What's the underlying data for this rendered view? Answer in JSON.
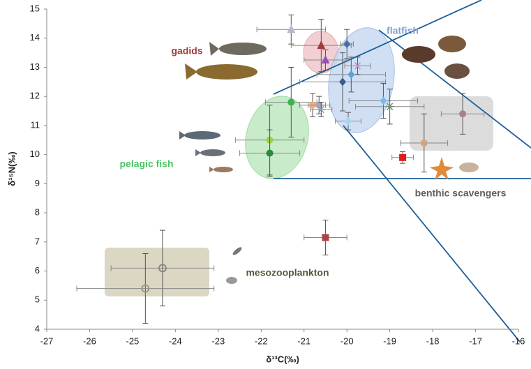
{
  "chart_data": {
    "type": "scatter",
    "x_label": "δ¹³C(‰)",
    "y_label": "δ¹⁵N(‰)",
    "xlim": [
      -27,
      -16
    ],
    "ylim": [
      4,
      15
    ],
    "xticks": [
      -27,
      -26,
      -25,
      -24,
      -23,
      -22,
      -21,
      -20,
      -19,
      -18,
      -17,
      -16
    ],
    "yticks": [
      4,
      5,
      6,
      7,
      8,
      9,
      10,
      11,
      12,
      13,
      14,
      15
    ],
    "annotations": [
      {
        "text": "gadids",
        "color": "#a33b3b"
      },
      {
        "text": "flatfish",
        "color": "#7c9fd6"
      },
      {
        "text": "pelagic fish",
        "color": "#4cc466"
      },
      {
        "text": "benthic scavengers",
        "color": "#5e5e5e"
      },
      {
        "text": "mesozooplankton",
        "color": "#55553a"
      }
    ],
    "points": [
      {
        "x": -21.3,
        "y": 14.3,
        "xerr": 0.8,
        "yerr": 0.5,
        "marker": "triangle",
        "color": "#b8b8cc"
      },
      {
        "x": -20.6,
        "y": 13.75,
        "xerr": 0.7,
        "yerr": 0.9,
        "marker": "triangle",
        "color": "#a33b3b"
      },
      {
        "x": -20.5,
        "y": 13.25,
        "xerr": 0.5,
        "yerr": 0.35,
        "marker": "triangle",
        "color": "#9b4fb5"
      },
      {
        "x": -20.0,
        "y": 13.8,
        "xerr": 0.15,
        "yerr": 0.5,
        "marker": "diamond",
        "color": "#4a6fa5"
      },
      {
        "x": -20.1,
        "y": 12.5,
        "xerr": 1.0,
        "yerr": 1.0,
        "marker": "diamond",
        "color": "#3d5d8f"
      },
      {
        "x": -19.9,
        "y": 12.75,
        "xerr": 0.8,
        "yerr": 0.6,
        "marker": "diamond",
        "color": "#5aa0dc"
      },
      {
        "x": -19.75,
        "y": 13.05,
        "xerr": 0.3,
        "yerr": 0.3,
        "marker": "asterisk",
        "color": "#b99ac8"
      },
      {
        "x": -19.15,
        "y": 11.85,
        "xerr": 0.8,
        "yerr": 0.6,
        "marker": "diamond",
        "color": "#7fb8e6"
      },
      {
        "x": -19.0,
        "y": 11.65,
        "xerr": 0.8,
        "yerr": 0.6,
        "marker": "asterisk",
        "color": "#6e8a6e"
      },
      {
        "x": -19.97,
        "y": 11.15,
        "xerr": 0.3,
        "yerr": 0.3,
        "marker": "diamond",
        "color": "#a8d4f2"
      },
      {
        "x": -17.3,
        "y": 11.4,
        "xerr": 0.5,
        "yerr": 0.7,
        "marker": "circle",
        "color": "#a8808c"
      },
      {
        "x": -18.2,
        "y": 10.4,
        "xerr": 0.55,
        "yerr": 1.0,
        "marker": "circle",
        "color": "#d6a37a"
      },
      {
        "x": -18.7,
        "y": 9.9,
        "xerr": 0.25,
        "yerr": 0.2,
        "marker": "square",
        "color": "#e01b1b"
      },
      {
        "x": -20.5,
        "y": 7.15,
        "xerr": 0.5,
        "yerr": 0.6,
        "marker": "square",
        "color": "#a84444"
      },
      {
        "x": -21.3,
        "y": 11.8,
        "xerr": 0.6,
        "yerr": 1.2,
        "marker": "circle",
        "color": "#3cb44b"
      },
      {
        "x": -20.8,
        "y": 11.7,
        "xerr": 0.3,
        "yerr": 0.4,
        "marker": "circle",
        "color": "#f0b07a"
      },
      {
        "x": -20.65,
        "y": 11.7,
        "xerr": 0.25,
        "yerr": 0.3,
        "marker": "circle",
        "color": "#b0a0c0"
      },
      {
        "x": -20.6,
        "y": 11.55,
        "xerr": 0.25,
        "yerr": 0.25,
        "marker": "asterisk",
        "color": "#8a9aaa"
      },
      {
        "x": -21.8,
        "y": 10.5,
        "xerr": 0.8,
        "yerr": 1.2,
        "marker": "circle",
        "color": "#9ad04a"
      },
      {
        "x": -21.8,
        "y": 10.05,
        "xerr": 0.7,
        "yerr": 0.8,
        "marker": "circle",
        "color": "#2a8a3a"
      },
      {
        "x": -24.3,
        "y": 6.1,
        "xerr": 1.2,
        "yerr": 1.3,
        "marker": "hollow",
        "color": "#8a8a7a"
      },
      {
        "x": -24.7,
        "y": 5.4,
        "xerr": 1.6,
        "yerr": 1.2,
        "marker": "hollow",
        "color": "#9a9a8a"
      }
    ]
  }
}
